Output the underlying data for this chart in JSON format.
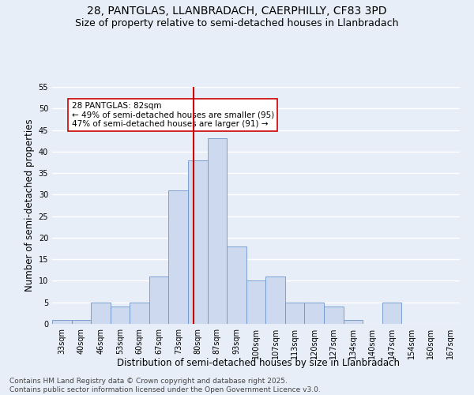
{
  "title": "28, PANTGLAS, LLANBRADACH, CAERPHILLY, CF83 3PD",
  "subtitle": "Size of property relative to semi-detached houses in Llanbradach",
  "xlabel": "Distribution of semi-detached houses by size in Llanbradach",
  "ylabel": "Number of semi-detached properties",
  "bin_labels": [
    "33sqm",
    "40sqm",
    "46sqm",
    "53sqm",
    "60sqm",
    "67sqm",
    "73sqm",
    "80sqm",
    "87sqm",
    "93sqm",
    "100sqm",
    "107sqm",
    "113sqm",
    "120sqm",
    "127sqm",
    "134sqm",
    "140sqm",
    "147sqm",
    "154sqm",
    "160sqm",
    "167sqm"
  ],
  "counts": [
    1,
    1,
    5,
    4,
    5,
    11,
    31,
    38,
    43,
    18,
    10,
    11,
    5,
    5,
    4,
    1,
    0,
    5,
    0,
    0,
    0
  ],
  "bar_color": "#cdd9ee",
  "bar_edge_color": "#6b96cc",
  "ref_line_color": "#cc0000",
  "annotation_text": "28 PANTGLAS: 82sqm\n← 49% of semi-detached houses are smaller (95)\n47% of semi-detached houses are larger (91) →",
  "annotation_box_color": "#ffffff",
  "annotation_box_edge_color": "#cc0000",
  "ylim": [
    0,
    55
  ],
  "yticks": [
    0,
    5,
    10,
    15,
    20,
    25,
    30,
    35,
    40,
    45,
    50,
    55
  ],
  "bg_color": "#e8eef8",
  "grid_color": "#ffffff",
  "footer": "Contains HM Land Registry data © Crown copyright and database right 2025.\nContains public sector information licensed under the Open Government Licence v3.0.",
  "title_fontsize": 10,
  "subtitle_fontsize": 9,
  "axis_label_fontsize": 8.5,
  "tick_fontsize": 7,
  "annotation_fontsize": 7.5,
  "footer_fontsize": 6.5
}
